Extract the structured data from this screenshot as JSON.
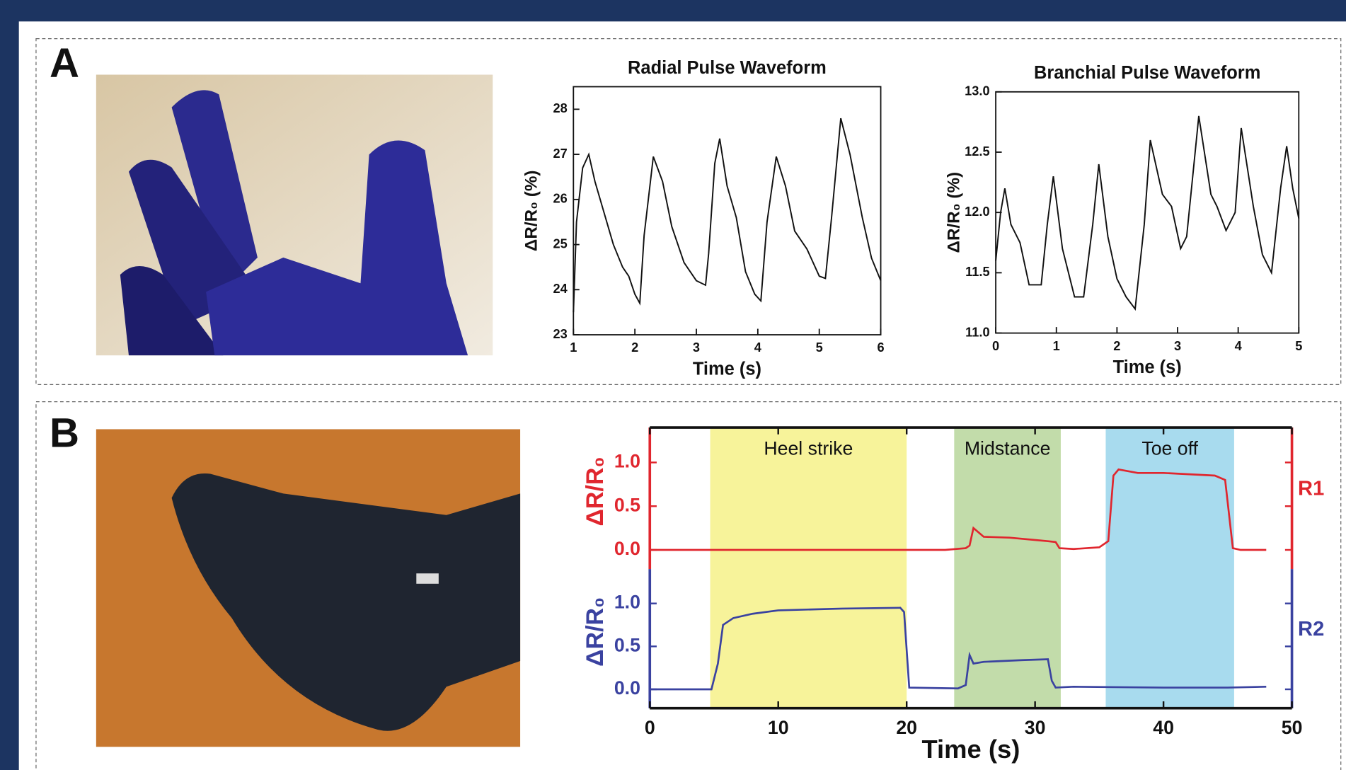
{
  "panel_labels": [
    "A",
    "B"
  ],
  "chart_data": [
    {
      "type": "line",
      "title": "Radial Pulse Waveform",
      "xlabel": "Time (s)",
      "ylabel": "ΔR/R₀ (%)",
      "color": "#111111",
      "x": [
        1.0,
        1.05,
        1.15,
        1.25,
        1.35,
        1.5,
        1.65,
        1.8,
        1.9,
        2.0,
        2.08,
        2.15,
        2.3,
        2.45,
        2.6,
        2.8,
        3.0,
        3.15,
        3.2,
        3.3,
        3.38,
        3.5,
        3.65,
        3.8,
        3.95,
        4.05,
        4.15,
        4.3,
        4.45,
        4.6,
        4.8,
        5.0,
        5.1,
        5.2,
        5.35,
        5.5,
        5.7,
        5.85,
        6.0
      ],
      "values": [
        23.5,
        25.5,
        26.7,
        27.0,
        26.4,
        25.7,
        25.0,
        24.5,
        24.3,
        23.9,
        23.7,
        25.2,
        26.95,
        26.4,
        25.4,
        24.6,
        24.2,
        24.1,
        24.8,
        26.8,
        27.35,
        26.3,
        25.6,
        24.4,
        23.9,
        23.75,
        25.5,
        26.95,
        26.3,
        25.3,
        24.9,
        24.3,
        24.25,
        25.6,
        27.8,
        27.0,
        25.6,
        24.7,
        24.2
      ],
      "xlim": [
        1,
        6
      ],
      "xticks": [
        1,
        2,
        3,
        4,
        5,
        6
      ],
      "ylim": [
        23,
        28.5
      ],
      "yticks": [
        23,
        24,
        25,
        26,
        27,
        28
      ]
    },
    {
      "type": "line",
      "title": "Branchial Pulse Waveform",
      "xlabel": "Time (s)",
      "ylabel": "ΔR/R₀ (%)",
      "color": "#111111",
      "x": [
        0,
        0.08,
        0.15,
        0.25,
        0.4,
        0.55,
        0.75,
        0.85,
        0.95,
        1.1,
        1.3,
        1.45,
        1.6,
        1.7,
        1.85,
        2.0,
        2.15,
        2.3,
        2.45,
        2.55,
        2.75,
        2.9,
        3.05,
        3.15,
        3.35,
        3.55,
        3.65,
        3.8,
        3.95,
        4.05,
        4.25,
        4.4,
        4.55,
        4.7,
        4.8,
        4.9,
        5.0
      ],
      "values": [
        11.6,
        12.0,
        12.2,
        11.9,
        11.75,
        11.4,
        11.4,
        11.9,
        12.3,
        11.7,
        11.3,
        11.3,
        11.9,
        12.4,
        11.8,
        11.45,
        11.3,
        11.2,
        11.9,
        12.6,
        12.15,
        12.05,
        11.7,
        11.8,
        12.8,
        12.15,
        12.05,
        11.85,
        12.0,
        12.7,
        12.05,
        11.65,
        11.5,
        12.2,
        12.55,
        12.2,
        11.95
      ],
      "xlim": [
        0,
        5
      ],
      "xticks": [
        0,
        1,
        2,
        3,
        4,
        5
      ],
      "ylim": [
        11,
        13
      ],
      "yticks": [
        {
          "value": 11,
          "label": "11.0"
        },
        11.5,
        {
          "value": 12,
          "label": "12.0"
        },
        12.5,
        {
          "value": 13,
          "label": "13.0"
        }
      ]
    },
    {
      "type": "line",
      "xlabel": "Time (s)",
      "ylabel": "ΔR/R₀",
      "xlim": [
        0,
        50
      ],
      "xticks": [
        0,
        10,
        20,
        30,
        40,
        50
      ],
      "ylim": [
        -0.22,
        1.4
      ],
      "yticks": [
        {
          "value": 0,
          "label": "0.0"
        },
        0.5,
        {
          "value": 1,
          "label": "1.0"
        }
      ],
      "regions": [
        {
          "label": "Heel strike",
          "start": 4.7,
          "end": 20,
          "color": "#f7f39a"
        },
        {
          "label": "Midstance",
          "start": 23.7,
          "end": 32,
          "color": "#c2dcaa"
        },
        {
          "label": "Toe off",
          "start": 35.5,
          "end": 45.5,
          "color": "#a8dbee"
        }
      ],
      "series": [
        {
          "name": "R1",
          "color": "#e0262e",
          "x": [
            0,
            5,
            10,
            15,
            20,
            23,
            24.6,
            24.9,
            25.2,
            26,
            28,
            31,
            31.6,
            31.9,
            33,
            35,
            35.7,
            36.1,
            36.5,
            38,
            40,
            44,
            44.8,
            45.4,
            46,
            48
          ],
          "values": [
            0,
            0,
            0,
            0,
            0,
            0,
            0.02,
            0.05,
            0.25,
            0.15,
            0.14,
            0.1,
            0.09,
            0.02,
            0.01,
            0.03,
            0.1,
            0.85,
            0.92,
            0.88,
            0.88,
            0.85,
            0.8,
            0.02,
            0,
            0
          ]
        },
        {
          "name": "R2",
          "color": "#3a42a0",
          "x": [
            0,
            4.8,
            5.3,
            5.7,
            6.5,
            8,
            10,
            15,
            19.5,
            19.8,
            20.2,
            24,
            24.6,
            24.9,
            25.2,
            26,
            29,
            31,
            31.3,
            31.6,
            33,
            40,
            45,
            48
          ],
          "values": [
            0,
            0,
            0.3,
            0.75,
            0.83,
            0.88,
            0.92,
            0.94,
            0.95,
            0.9,
            0.02,
            0.01,
            0.05,
            0.4,
            0.3,
            0.32,
            0.34,
            0.35,
            0.1,
            0.02,
            0.03,
            0.02,
            0.02,
            0.03
          ]
        }
      ]
    }
  ]
}
